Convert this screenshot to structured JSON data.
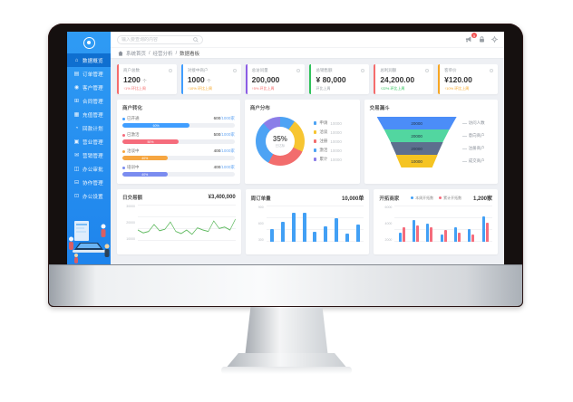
{
  "header": {
    "search_placeholder": "输入要查询的内容",
    "notification_badge": "5"
  },
  "breadcrumb": {
    "separator": "/",
    "items": [
      "系统首页",
      "经营分析",
      "数据看板"
    ]
  },
  "sidebar": {
    "items": [
      {
        "glyph": "⌂",
        "label": "数据概览"
      },
      {
        "glyph": "▤",
        "label": "订单管理"
      },
      {
        "glyph": "◉",
        "label": "客户管理"
      },
      {
        "glyph": "⊞",
        "label": "合同管理"
      },
      {
        "glyph": "▦",
        "label": "充值管理"
      },
      {
        "glyph": "◔",
        "label": "回款计划"
      },
      {
        "glyph": "▣",
        "label": "营业管理"
      },
      {
        "glyph": "✉",
        "label": "营销管理"
      },
      {
        "glyph": "◫",
        "label": "办公审批"
      },
      {
        "glyph": "⊟",
        "label": "协作管理"
      },
      {
        "glyph": "⊡",
        "label": "办公设置"
      }
    ]
  },
  "stat_cards": [
    {
      "title": "商户总数",
      "value": "1200",
      "unit": "个",
      "sub": "↑1% 环比上周",
      "accent": "#f56c6c",
      "sub_color": "#f56c6c"
    },
    {
      "title": "对接中商户",
      "value": "1000",
      "unit": "个",
      "sub": "↑10% 环比上周",
      "accent": "#409eff",
      "sub_color": "#f6a623"
    },
    {
      "title": "总访问量",
      "value": "200,000",
      "unit": "",
      "sub": "↑5% 环比上周",
      "accent": "#8b5ce5",
      "sub_color": "#f56c6c"
    },
    {
      "title": "总销售额",
      "value": "¥ 80,000",
      "unit": "",
      "sub": "环比上周",
      "accent": "#2fc25b",
      "sub_color": "#9aa0a6"
    },
    {
      "title": "总利润额",
      "value": "24,200.00",
      "unit": "",
      "sub": "↑22% 环比上周",
      "accent": "#f56c6c",
      "sub_color": "#2fc25b"
    },
    {
      "title": "客单价",
      "value": "¥120.00",
      "unit": "",
      "sub": "↑10% 环比上周",
      "accent": "#f6a623",
      "sub_color": "#f6a623"
    }
  ],
  "panels": {
    "conversion": {
      "title": "商户转化",
      "items": [
        {
          "label": "已开通",
          "done": "600",
          "total": "/1000家",
          "percent": 60,
          "color": "#409eff"
        },
        {
          "label": "已激活",
          "done": "500",
          "total": "/1000家",
          "percent": 50,
          "color": "#f56c7c"
        },
        {
          "label": "洽谈中",
          "done": "400",
          "total": "/1000家",
          "percent": 40,
          "color": "#f6a641"
        },
        {
          "label": "培训中",
          "done": "400",
          "total": "/1000家",
          "percent": 40,
          "color": "#7a8cf0"
        }
      ]
    },
    "distribution": {
      "title": "商户分布",
      "center_value": "35%",
      "center_label": "已达标",
      "segments": [
        {
          "label": "申请",
          "value": "10000",
          "color": "#4da3f4",
          "pct": 10
        },
        {
          "label": "洽谈",
          "value": "10000",
          "color": "#f7c531",
          "pct": 22
        },
        {
          "label": "注册",
          "value": "10000",
          "color": "#f26d6d",
          "pct": 26
        },
        {
          "label": "激活",
          "value": "10000",
          "color": "#4da3f4",
          "pct": 30
        },
        {
          "label": "累计",
          "value": "10000",
          "color": "#8b7de8",
          "pct": 12
        }
      ]
    },
    "funnel": {
      "title": "交易漏斗",
      "items": [
        {
          "value": "20000",
          "label": "访问人数",
          "color": "#4b8df8"
        },
        {
          "value": "20000",
          "label": "意向商户",
          "color": "#52d6a0"
        },
        {
          "value": "20000",
          "label": "注册商户",
          "color": "#5d6f8e"
        },
        {
          "value": "10000",
          "label": "成交商户",
          "color": "#f5c422"
        }
      ]
    },
    "daily": {
      "title": "日交易额",
      "total": "¥3,400,000",
      "yticks": [
        "30000",
        "20000",
        "10000"
      ],
      "line_color": "#5cb85c",
      "values": [
        30,
        22,
        26,
        45,
        28,
        32,
        52,
        26,
        20,
        30,
        18,
        36,
        30,
        26,
        55,
        34,
        38,
        30,
        60
      ]
    },
    "weekly": {
      "title": "周订单量",
      "total": "10,000单",
      "yticks": [
        "900",
        "600",
        "300"
      ],
      "bar_color": "#42a0f5",
      "values": [
        35,
        55,
        80,
        80,
        28,
        42,
        65,
        22,
        48
      ]
    },
    "expansion": {
      "title": "开拓商家",
      "total": "1,200家",
      "yticks": [
        "6000",
        "4000",
        "2000"
      ],
      "legend": [
        {
          "label": "本周开拓数",
          "color": "#42a0f5"
        },
        {
          "label": "累计开拓数",
          "color": "#f56c7c"
        }
      ],
      "groups": [
        [
          26,
          40
        ],
        [
          60,
          46
        ],
        [
          50,
          40
        ],
        [
          20,
          32
        ],
        [
          40,
          26
        ],
        [
          34,
          20
        ],
        [
          70,
          52
        ]
      ]
    }
  }
}
